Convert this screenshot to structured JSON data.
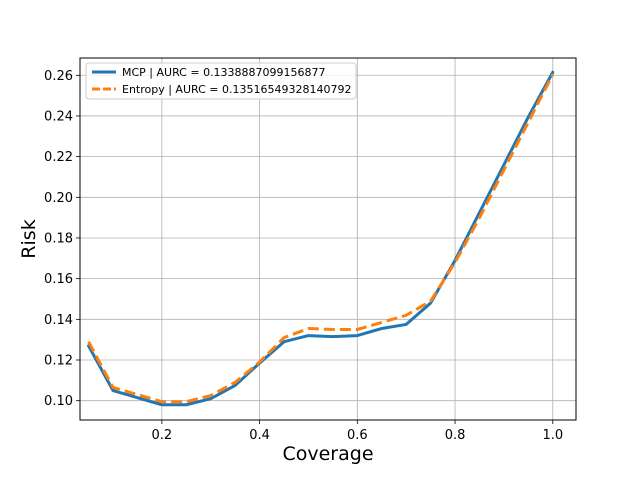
{
  "chart_data": {
    "type": "line",
    "title": "",
    "xlabel": "Coverage",
    "ylabel": "Risk",
    "xlim": [
      0.0325,
      1.0475
    ],
    "ylim": [
      0.0905,
      0.2685
    ],
    "xticks": [
      0.2,
      0.4,
      0.6,
      0.8,
      1.0
    ],
    "xtick_labels": [
      "0.2",
      "0.4",
      "0.6",
      "0.8",
      "1.0"
    ],
    "yticks": [
      0.1,
      0.12,
      0.14,
      0.16,
      0.18,
      0.2,
      0.22,
      0.24,
      0.26
    ],
    "ytick_labels": [
      "0.10",
      "0.12",
      "0.14",
      "0.16",
      "0.18",
      "0.20",
      "0.22",
      "0.24",
      "0.26"
    ],
    "grid": true,
    "legend_position": "top-left",
    "series": [
      {
        "name": "MCP | AURC = 0.1338887099156877",
        "color": "#1f77b4",
        "style": "solid",
        "x": [
          0.05,
          0.1,
          0.15,
          0.2,
          0.25,
          0.3,
          0.35,
          0.4,
          0.45,
          0.5,
          0.55,
          0.6,
          0.65,
          0.7,
          0.75,
          0.8,
          0.85,
          0.9,
          0.95,
          1.0
        ],
        "y": [
          0.127,
          0.105,
          0.1015,
          0.098,
          0.098,
          0.101,
          0.1075,
          0.1185,
          0.129,
          0.132,
          0.1315,
          0.132,
          0.1355,
          0.1375,
          0.148,
          0.169,
          0.1925,
          0.216,
          0.2395,
          0.2615
        ]
      },
      {
        "name": "Entropy | AURC = 0.13516549328140792",
        "color": "#ff7f0e",
        "style": "dashed",
        "x": [
          0.05,
          0.1,
          0.15,
          0.2,
          0.25,
          0.3,
          0.35,
          0.4,
          0.45,
          0.5,
          0.55,
          0.6,
          0.65,
          0.7,
          0.75,
          0.8,
          0.85,
          0.9,
          0.95,
          1.0
        ],
        "y": [
          0.129,
          0.1065,
          0.103,
          0.0995,
          0.0995,
          0.1025,
          0.109,
          0.119,
          0.131,
          0.1355,
          0.135,
          0.135,
          0.1385,
          0.142,
          0.149,
          0.168,
          0.19,
          0.2135,
          0.237,
          0.2605
        ]
      }
    ]
  }
}
